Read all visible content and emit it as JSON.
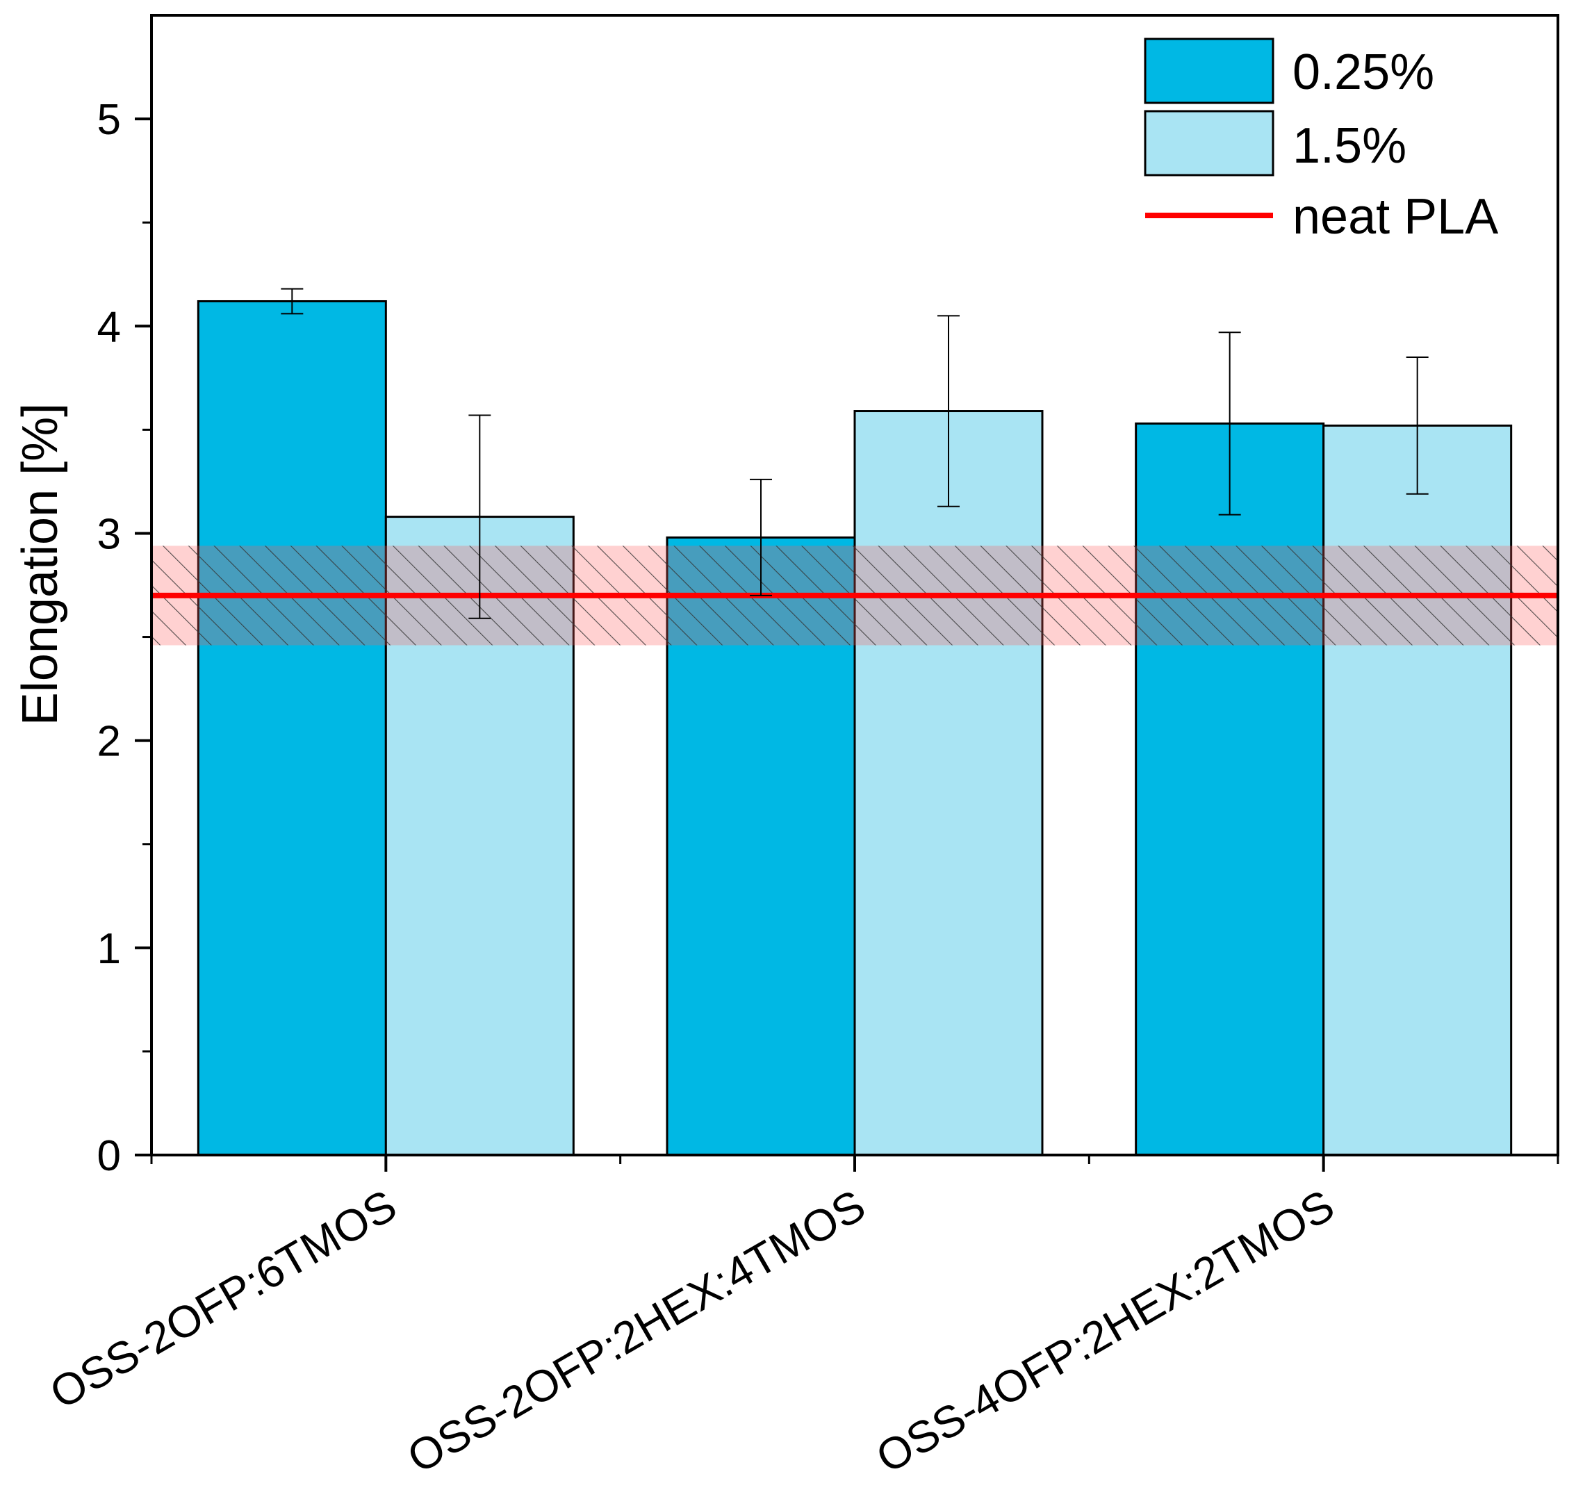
{
  "chart_data": {
    "type": "bar",
    "title": "",
    "xlabel": "",
    "ylabel": "Elongation [%]",
    "ylim": [
      0,
      5.5
    ],
    "yticks": [
      "0",
      "1",
      "2",
      "3",
      "4",
      "5"
    ],
    "categories": [
      "OSS-2OFP:6TMOS",
      "OSS-2OFP:2HEX:4TMOS",
      "OSS-4OFP:2HEX:2TMOS"
    ],
    "series": [
      {
        "name": "0.25%",
        "color": "#00b8e4",
        "values": [
          4.12,
          2.98,
          3.53
        ],
        "errors": [
          0.06,
          0.28,
          0.44
        ]
      },
      {
        "name": "1.5%",
        "color": "#a9e4f3",
        "values": [
          3.08,
          3.59,
          3.52
        ],
        "errors": [
          0.49,
          0.46,
          0.33
        ]
      }
    ],
    "reference": {
      "name": "neat PLA",
      "color": "#ff0000",
      "value": 2.7,
      "band": [
        2.46,
        2.94
      ]
    },
    "legend_position": "top-right",
    "grid": false
  }
}
